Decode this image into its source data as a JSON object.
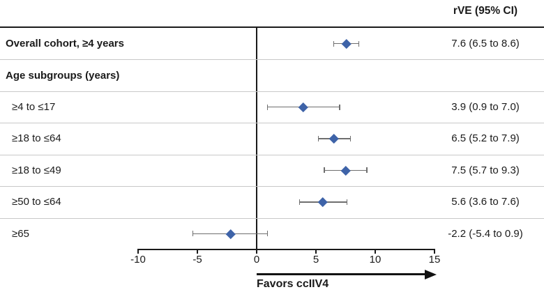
{
  "chart_data": {
    "type": "scatter",
    "subtype": "forest-plot",
    "value_column_header": "rVE (95% CI)",
    "favors_label": "Favors ccIIV4",
    "xlim": [
      -10,
      15
    ],
    "x_ticks": [
      -10,
      -5,
      0,
      5,
      10,
      15
    ],
    "reference_line_x": 0,
    "grid": "row-separators",
    "marker_shape": "diamond",
    "marker_color": "#3E63A8",
    "ci_color": "#6e6e6e",
    "separator_color": "#c8c8c8",
    "line_color": "#1a1a1a",
    "rows": [
      {
        "label": "Overall cohort, ≥4 years",
        "group": true,
        "estimate": 7.6,
        "ci_low": 6.5,
        "ci_high": 8.6,
        "value_label": "7.6 (6.5 to 8.6)"
      },
      {
        "label": "Age subgroups (years)",
        "group": true,
        "estimate": null,
        "ci_low": null,
        "ci_high": null,
        "value_label": ""
      },
      {
        "label": "≥4 to ≤17",
        "group": false,
        "estimate": 3.9,
        "ci_low": 0.9,
        "ci_high": 7.0,
        "value_label": "3.9 (0.9 to 7.0)"
      },
      {
        "label": "≥18 to ≤64",
        "group": false,
        "estimate": 6.5,
        "ci_low": 5.2,
        "ci_high": 7.9,
        "value_label": "6.5 (5.2 to 7.9)"
      },
      {
        "label": "≥18 to ≤49",
        "group": false,
        "estimate": 7.5,
        "ci_low": 5.7,
        "ci_high": 9.3,
        "value_label": "7.5 (5.7 to 9.3)"
      },
      {
        "label": "≥50 to ≤64",
        "group": false,
        "estimate": 5.6,
        "ci_low": 3.6,
        "ci_high": 7.6,
        "value_label": "5.6 (3.6 to 7.6)"
      },
      {
        "label": "≥65",
        "group": false,
        "estimate": -2.2,
        "ci_low": -5.4,
        "ci_high": 0.9,
        "value_label": "-2.2 (-5.4 to 0.9)"
      }
    ]
  }
}
